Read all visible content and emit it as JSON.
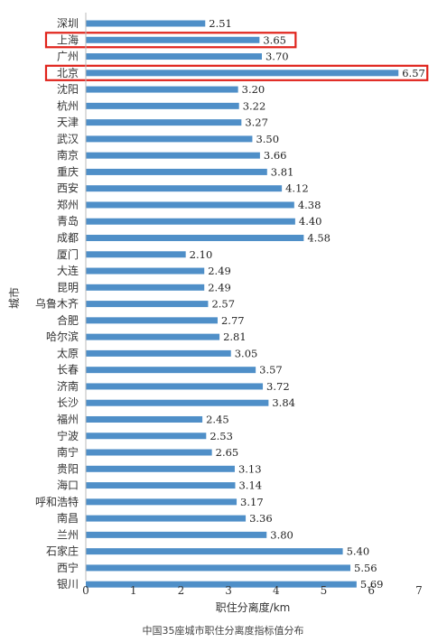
{
  "chart_data": {
    "type": "bar",
    "orientation": "horizontal",
    "categories": [
      "深圳",
      "上海",
      "广州",
      "北京",
      "沈阳",
      "杭州",
      "天津",
      "武汉",
      "南京",
      "重庆",
      "西安",
      "郑州",
      "青岛",
      "成都",
      "厦门",
      "大连",
      "昆明",
      "乌鲁木齐",
      "合肥",
      "哈尔滨",
      "太原",
      "长春",
      "济南",
      "长沙",
      "福州",
      "宁波",
      "南宁",
      "贵阳",
      "海口",
      "呼和浩特",
      "南昌",
      "兰州",
      "石家庄",
      "西宁",
      "银川"
    ],
    "values": [
      2.51,
      3.65,
      3.7,
      6.57,
      3.2,
      3.22,
      3.27,
      3.5,
      3.66,
      3.81,
      4.12,
      4.38,
      4.4,
      4.58,
      2.1,
      2.49,
      2.49,
      2.57,
      2.77,
      2.81,
      3.05,
      3.57,
      3.72,
      3.84,
      2.45,
      2.53,
      2.65,
      3.13,
      3.14,
      3.17,
      3.36,
      3.8,
      5.4,
      5.56,
      5.69
    ],
    "value_labels": [
      "2.51",
      "3.65",
      "3.70",
      "6.57",
      "3.20",
      "3.22",
      "3.27",
      "3.50",
      "3.66",
      "3.81",
      "4.12",
      "4.38",
      "4.40",
      "4.58",
      "2.10",
      "2.49",
      "2.49",
      "2.57",
      "2.77",
      "2.81",
      "3.05",
      "3.57",
      "3.72",
      "3.84",
      "2.45",
      "2.53",
      "2.65",
      "3.13",
      "3.14",
      "3.17",
      "3.36",
      "3.80",
      "5.40",
      "5.56",
      "5.69"
    ],
    "highlighted": [
      "上海",
      "北京"
    ],
    "xlabel": "职住分离度/km",
    "ylabel": "城市",
    "xlim": [
      0,
      7
    ],
    "xticks": [
      "0",
      "1",
      "2",
      "3",
      "4",
      "5",
      "6",
      "7"
    ],
    "caption": "中国35座城市职住分离度指标值分布",
    "bar_color": "#4f8fc8",
    "highlight_color": "#e0231b",
    "grid": false
  }
}
